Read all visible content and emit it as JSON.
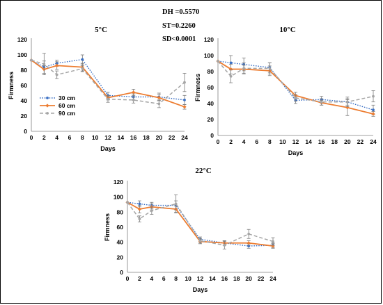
{
  "statistics": {
    "dh": "DH =0.5570",
    "st": "ST=0.2260",
    "sd": "SD<0.0001"
  },
  "colors": {
    "30 cm": "#3a6fc4",
    "60 cm": "#ed7d31",
    "90 cm": "#a5a5a5"
  },
  "chart_data": [
    {
      "type": "line",
      "title": "5°C",
      "xlabel": "Days",
      "ylabel": "Firmness",
      "xlim": [
        0,
        24
      ],
      "ylim": [
        0,
        120
      ],
      "xticks": [
        0,
        2,
        4,
        6,
        8,
        10,
        12,
        14,
        16,
        18,
        20,
        22,
        24
      ],
      "yticks": [
        0,
        20,
        40,
        60,
        80,
        100,
        120
      ],
      "legend": "left",
      "series": [
        {
          "name": "30 cm",
          "x": [
            0,
            2,
            4,
            8,
            12,
            16,
            20,
            24
          ],
          "y": [
            93,
            84,
            89,
            94,
            47,
            45,
            45,
            41
          ],
          "err": [
            0,
            8,
            4,
            6,
            4,
            4,
            5,
            6
          ]
        },
        {
          "name": "60 cm",
          "x": [
            0,
            2,
            4,
            8,
            12,
            16,
            20,
            24
          ],
          "y": [
            93,
            81,
            86,
            84,
            44,
            51,
            44,
            32
          ],
          "err": [
            0,
            5,
            5,
            5,
            3,
            4,
            4,
            3
          ]
        },
        {
          "name": "90 cm",
          "x": [
            0,
            2,
            4,
            8,
            12,
            16,
            20,
            24
          ],
          "y": [
            93,
            88,
            74,
            82,
            42,
            41,
            36,
            64
          ],
          "err": [
            0,
            14,
            5,
            4,
            4,
            4,
            5,
            12
          ]
        }
      ]
    },
    {
      "type": "line",
      "title": "10°C",
      "xlabel": "Days",
      "ylabel": "Firmness",
      "xlim": [
        0,
        24
      ],
      "ylim": [
        0,
        120
      ],
      "xticks": [
        0,
        2,
        4,
        6,
        8,
        10,
        12,
        14,
        16,
        18,
        20,
        22,
        24
      ],
      "yticks": [
        0,
        20,
        40,
        60,
        80,
        100,
        120
      ],
      "series": [
        {
          "name": "30 cm",
          "x": [
            0,
            2,
            4,
            8,
            12,
            16,
            20,
            24
          ],
          "y": [
            93,
            91,
            89,
            85,
            44,
            45,
            42,
            32
          ],
          "err": [
            0,
            9,
            8,
            6,
            4,
            4,
            4,
            6
          ]
        },
        {
          "name": "60 cm",
          "x": [
            0,
            2,
            4,
            8,
            12,
            16,
            20,
            24
          ],
          "y": [
            93,
            83,
            83,
            81,
            50,
            41,
            35,
            27
          ],
          "err": [
            0,
            6,
            5,
            6,
            4,
            3,
            10,
            3
          ]
        },
        {
          "name": "90 cm",
          "x": [
            0,
            2,
            4,
            8,
            12,
            16,
            20,
            24
          ],
          "y": [
            93,
            74,
            84,
            84,
            47,
            42,
            42,
            49
          ],
          "err": [
            0,
            8,
            7,
            7,
            4,
            4,
            6,
            7
          ]
        }
      ]
    },
    {
      "type": "line",
      "title": "22°C",
      "xlabel": "Days",
      "ylabel": "Firmness",
      "xlim": [
        0,
        24
      ],
      "ylim": [
        0,
        120
      ],
      "xticks": [
        0,
        2,
        4,
        6,
        8,
        10,
        12,
        14,
        16,
        18,
        20,
        22,
        24
      ],
      "yticks": [
        0,
        20,
        40,
        60,
        80,
        100,
        120
      ],
      "series": [
        {
          "name": "30 cm",
          "x": [
            0,
            2,
            4,
            8,
            12,
            16,
            20,
            24
          ],
          "y": [
            93,
            91,
            89,
            89,
            44,
            39,
            35,
            36
          ],
          "err": [
            0,
            4,
            4,
            6,
            3,
            3,
            3,
            3
          ]
        },
        {
          "name": "60 cm",
          "x": [
            0,
            2,
            4,
            8,
            12,
            16,
            20,
            24
          ],
          "y": [
            93,
            84,
            87,
            84,
            41,
            39,
            39,
            35
          ],
          "err": [
            0,
            5,
            4,
            4,
            3,
            3,
            3,
            3
          ]
        },
        {
          "name": "90 cm",
          "x": [
            0,
            2,
            4,
            8,
            12,
            16,
            20,
            24
          ],
          "y": [
            93,
            71,
            82,
            91,
            42,
            36,
            51,
            41
          ],
          "err": [
            0,
            4,
            5,
            12,
            3,
            5,
            6,
            5
          ]
        }
      ]
    }
  ]
}
